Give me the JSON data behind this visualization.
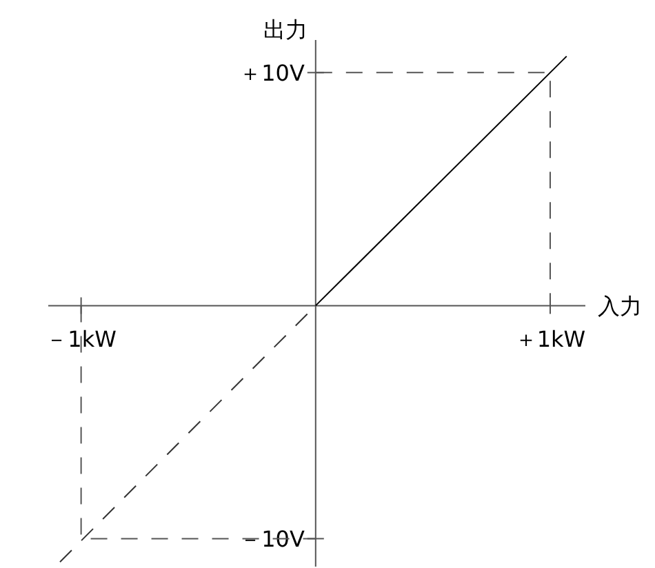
{
  "chart_data": {
    "type": "line",
    "xlabel": "入力",
    "ylabel": "出力",
    "xlim": [
      -1.14,
      1.15
    ],
    "ylim": [
      -11.2,
      11.4
    ],
    "xticks": [
      {
        "value": -1,
        "label": "－1kW"
      },
      {
        "value": 1,
        "label": "＋1kW"
      }
    ],
    "yticks": [
      {
        "value": -10,
        "label": "－10V"
      },
      {
        "value": 10,
        "label": "＋10V"
      }
    ],
    "series": [
      {
        "color": "#000000",
        "line_style": "solid",
        "x": [
          0,
          1.07
        ],
        "values": [
          0,
          10.7
        ]
      },
      {
        "color": "#333333",
        "line_style": "dashed",
        "x": [
          -1.09,
          0
        ],
        "values": [
          -11,
          0
        ]
      },
      {
        "color": "#555555",
        "line_style": "dashed",
        "x": [
          0,
          1,
          1
        ],
        "values": [
          10,
          10,
          0
        ]
      },
      {
        "color": "#555555",
        "line_style": "dashed",
        "x": [
          -1,
          -1,
          0
        ],
        "values": [
          0,
          -10,
          -10
        ]
      }
    ]
  }
}
